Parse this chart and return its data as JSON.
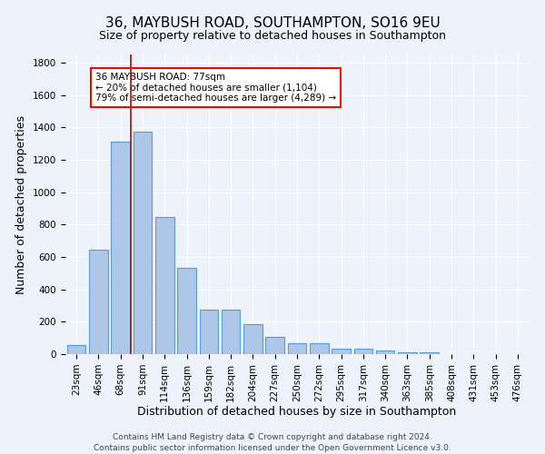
{
  "title": "36, MAYBUSH ROAD, SOUTHAMPTON, SO16 9EU",
  "subtitle": "Size of property relative to detached houses in Southampton",
  "xlabel": "Distribution of detached houses by size in Southampton",
  "ylabel": "Number of detached properties",
  "footer_line1": "Contains HM Land Registry data © Crown copyright and database right 2024.",
  "footer_line2": "Contains public sector information licensed under the Open Government Licence v3.0.",
  "annotation_title": "36 MAYBUSH ROAD: 77sqm",
  "annotation_line1": "← 20% of detached houses are smaller (1,104)",
  "annotation_line2": "79% of semi-detached houses are larger (4,289) →",
  "bar_labels": [
    "23sqm",
    "46sqm",
    "68sqm",
    "91sqm",
    "114sqm",
    "136sqm",
    "159sqm",
    "182sqm",
    "204sqm",
    "227sqm",
    "250sqm",
    "272sqm",
    "295sqm",
    "317sqm",
    "340sqm",
    "363sqm",
    "385sqm",
    "408sqm",
    "431sqm",
    "453sqm",
    "476sqm"
  ],
  "bar_values": [
    55,
    645,
    1310,
    1375,
    845,
    530,
    275,
    275,
    185,
    105,
    65,
    65,
    35,
    35,
    20,
    10,
    10,
    0,
    0,
    0,
    0
  ],
  "bar_color": "#aec6e8",
  "bar_edge_color": "#5b9bd5",
  "background_color": "#eef3fb",
  "grid_color": "#ffffff",
  "vline_color": "#cc0000",
  "ylim": [
    0,
    1850
  ],
  "yticks": [
    0,
    200,
    400,
    600,
    800,
    1000,
    1200,
    1400,
    1600,
    1800
  ],
  "title_fontsize": 11,
  "subtitle_fontsize": 9,
  "axis_label_fontsize": 9,
  "tick_fontsize": 7.5,
  "annotation_fontsize": 7.5,
  "footer_fontsize": 6.5
}
